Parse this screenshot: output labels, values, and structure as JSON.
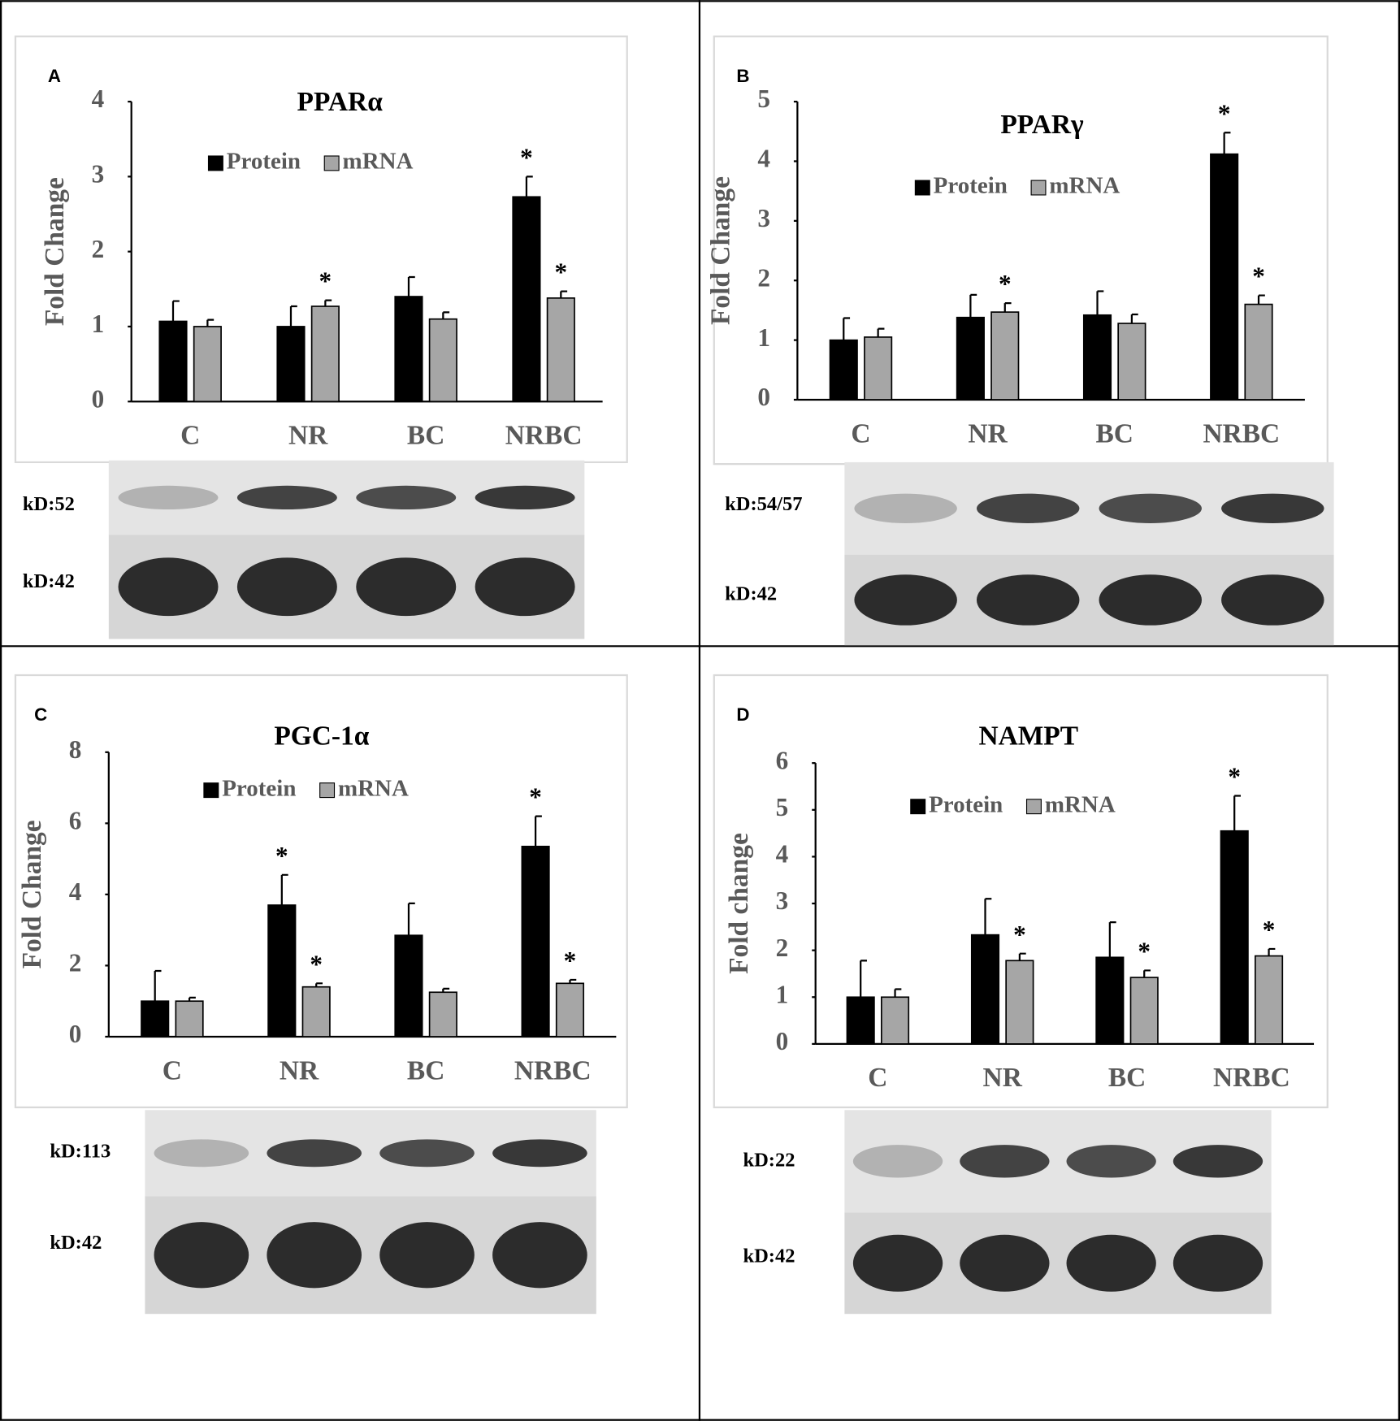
{
  "chart_data": [
    {
      "type": "bar",
      "panel": "A",
      "title": "PPARα",
      "ylabel": "Fold Change",
      "categories": [
        "C",
        "NR",
        "BC",
        "NRBC"
      ],
      "ylim": [
        0,
        4
      ],
      "yticks": [
        0,
        1,
        2,
        3,
        4
      ],
      "series": [
        {
          "name": "Protein",
          "color": "#000000",
          "values": [
            1.07,
            1.0,
            1.4,
            2.73
          ],
          "errors": [
            0.27,
            0.27,
            0.26,
            0.27
          ],
          "significance": [
            null,
            null,
            null,
            "*"
          ]
        },
        {
          "name": "mRNA",
          "color": "#a6a6a6",
          "values": [
            1.0,
            1.27,
            1.1,
            1.38
          ],
          "errors": [
            0.09,
            0.08,
            0.09,
            0.09
          ],
          "significance": [
            null,
            "*",
            null,
            "*"
          ]
        }
      ],
      "blot_labels": [
        "kD:52",
        "kD:42"
      ]
    },
    {
      "type": "bar",
      "panel": "B",
      "title": "PPARγ",
      "ylabel": "Fold Change",
      "categories": [
        "C",
        "NR",
        "BC",
        "NRBC"
      ],
      "ylim": [
        0,
        5
      ],
      "yticks": [
        0,
        1,
        2,
        3,
        4,
        5
      ],
      "series": [
        {
          "name": "Protein",
          "color": "#000000",
          "values": [
            1.0,
            1.38,
            1.42,
            4.12
          ],
          "errors": [
            0.37,
            0.38,
            0.4,
            0.36
          ],
          "significance": [
            null,
            null,
            null,
            "*"
          ]
        },
        {
          "name": "mRNA",
          "color": "#a6a6a6",
          "values": [
            1.05,
            1.47,
            1.28,
            1.6
          ],
          "errors": [
            0.14,
            0.15,
            0.15,
            0.15
          ],
          "significance": [
            null,
            "*",
            null,
            "*"
          ]
        }
      ],
      "blot_labels": [
        "kD:54/57",
        "kD:42"
      ]
    },
    {
      "type": "bar",
      "panel": "C",
      "title": "PGC-1α",
      "ylabel": "Fold Change",
      "categories": [
        "C",
        "NR",
        "BC",
        "NRBC"
      ],
      "ylim": [
        0,
        8
      ],
      "yticks": [
        0,
        2,
        4,
        6,
        8
      ],
      "series": [
        {
          "name": "Protein",
          "color": "#000000",
          "values": [
            1.0,
            3.7,
            2.85,
            5.35
          ],
          "errors": [
            0.85,
            0.85,
            0.9,
            0.85
          ],
          "significance": [
            null,
            "*",
            null,
            "*"
          ]
        },
        {
          "name": "mRNA",
          "color": "#a6a6a6",
          "values": [
            1.0,
            1.4,
            1.25,
            1.5
          ],
          "errors": [
            0.1,
            0.1,
            0.1,
            0.1
          ],
          "significance": [
            null,
            "*",
            null,
            "*"
          ]
        }
      ],
      "blot_labels": [
        "kD:113",
        "kD:42"
      ]
    },
    {
      "type": "bar",
      "panel": "D",
      "title": "NAMPT",
      "ylabel": "Fold change",
      "categories": [
        "C",
        "NR",
        "BC",
        "NRBC"
      ],
      "ylim": [
        0,
        6
      ],
      "yticks": [
        0,
        1,
        2,
        3,
        4,
        5,
        6
      ],
      "series": [
        {
          "name": "Protein",
          "color": "#000000",
          "values": [
            1.0,
            2.33,
            1.85,
            4.55
          ],
          "errors": [
            0.78,
            0.77,
            0.75,
            0.75
          ],
          "significance": [
            null,
            null,
            null,
            "*"
          ]
        },
        {
          "name": "mRNA",
          "color": "#a6a6a6",
          "values": [
            1.0,
            1.78,
            1.42,
            1.88
          ],
          "errors": [
            0.17,
            0.15,
            0.15,
            0.15
          ],
          "significance": [
            null,
            "*",
            "*",
            "*"
          ]
        }
      ],
      "blot_labels": [
        "kD:22",
        "kD:42"
      ]
    }
  ]
}
